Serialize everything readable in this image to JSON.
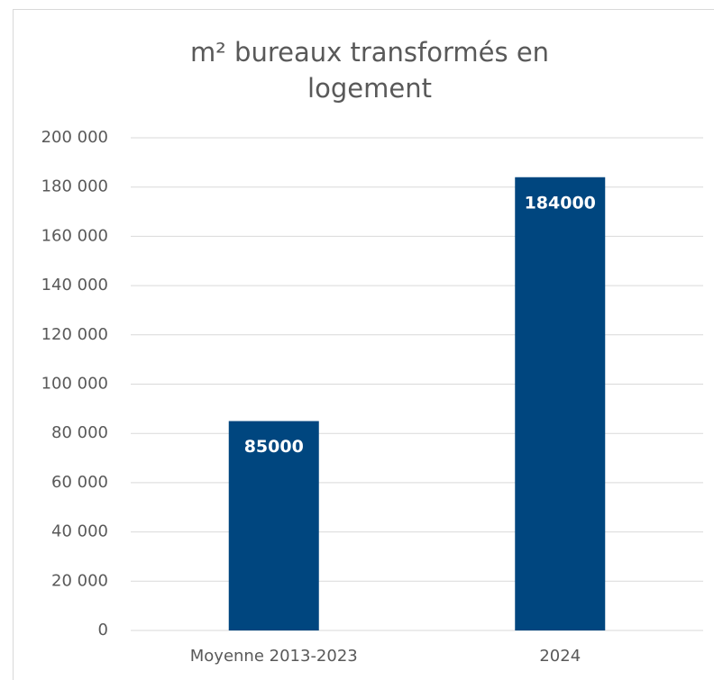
{
  "chart_data": {
    "type": "bar",
    "title": "m² bureaux transformés en logement",
    "categories": [
      "Moyenne 2013-2023",
      "2024"
    ],
    "values": [
      85000,
      184000
    ],
    "color": "#00467f",
    "ylim": [
      0,
      200000
    ],
    "yticks": [
      0,
      {
        "value": 20000,
        "label": "20 000"
      },
      {
        "value": 40000,
        "label": "40 000"
      },
      {
        "value": 60000,
        "label": "60 000"
      },
      {
        "value": 80000,
        "label": "80 000"
      },
      {
        "value": 100000,
        "label": "100 000"
      },
      {
        "value": 120000,
        "label": "120 000"
      },
      {
        "value": 140000,
        "label": "140 000"
      },
      {
        "value": 160000,
        "label": "160 000"
      },
      {
        "value": 180000,
        "label": "180 000"
      },
      {
        "value": 200000,
        "label": "200 000"
      }
    ],
    "grid": true
  }
}
